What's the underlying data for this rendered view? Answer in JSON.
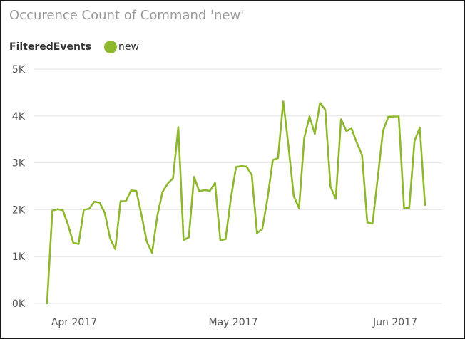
{
  "chart_data": {
    "type": "line",
    "title": "Occurence Count of Command 'new'",
    "legend_title": "FilteredEvents",
    "series": [
      {
        "name": "new",
        "color": "#8db72c",
        "values": [
          0,
          1980,
          2010,
          1990,
          1680,
          1290,
          1270,
          2000,
          2020,
          2170,
          2150,
          1930,
          1390,
          1160,
          2180,
          2180,
          2410,
          2400,
          1880,
          1320,
          1080,
          1870,
          2380,
          2560,
          2670,
          3760,
          1350,
          1410,
          2700,
          2390,
          2420,
          2400,
          2570,
          1350,
          1370,
          2230,
          2910,
          2930,
          2920,
          2740,
          1500,
          1590,
          2240,
          3060,
          3100,
          4310,
          3340,
          2290,
          2030,
          3530,
          3990,
          3620,
          4280,
          4130,
          2490,
          2230,
          3930,
          3680,
          3730,
          3430,
          3170,
          1730,
          1700,
          2690,
          3680,
          3980,
          3990,
          3990,
          2040,
          2040,
          3470,
          3750,
          2100
        ]
      }
    ],
    "x_tick_labels": [
      "Apr 2017",
      "May 2017",
      "Jun 2017"
    ],
    "y_tick_labels": [
      "0K",
      "1K",
      "2K",
      "3K",
      "4K",
      "5K"
    ],
    "ylim": [
      0,
      5000
    ],
    "grid": true,
    "legend_position": "top-left"
  }
}
